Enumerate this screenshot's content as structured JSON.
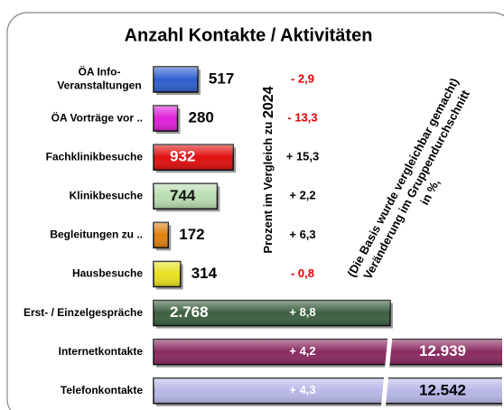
{
  "chart_data": {
    "type": "bar",
    "orientation": "horizontal",
    "title": "Anzahl Kontakte / Aktivitäten",
    "categories": [
      [
        "ÖA Info-",
        "Veranstaltungen"
      ],
      "ÖA Vorträge vor ..",
      "Fachklinikbesuche",
      "Klinikbesuche",
      "Begleitungen zu ..",
      "Hausbesuche",
      "Erst- / Einzelgespräche",
      "Internetkontakte",
      "Telefonkontakte"
    ],
    "values": [
      517,
      280,
      932,
      744,
      172,
      314,
      2768,
      12939,
      12542
    ],
    "value_labels": [
      "517",
      "280",
      "932",
      "744",
      "172",
      "314",
      "2.768",
      "12.939",
      "12.542"
    ],
    "colors": [
      "#2f5fd0",
      "#e020d8",
      "#e01010",
      "#b8dcb0",
      "#e08010",
      "#e8e020",
      "#3c6040",
      "#8a2a60",
      "#b8b8e8"
    ],
    "changes": [
      -2.9,
      -13.3,
      15.3,
      2.2,
      6.3,
      -0.8,
      8.8,
      4.2,
      4.3
    ],
    "change_labels": [
      "- 2,9",
      "- 13,3",
      "+ 15,3",
      "+ 2,2",
      "+ 6,3",
      "- 0,8",
      "+ 8,8",
      "+ 4,2",
      "+ 4,3"
    ],
    "xlim": [
      0,
      4100
    ],
    "y_axis_note": [
      "Prozent im Vergleich zu ",
      "2024"
    ],
    "annotation": [
      "(Die Basis wurde vergleichbar gemacht)",
      "Veränderung im Gruppendurchschnitt",
      "in %,"
    ]
  }
}
